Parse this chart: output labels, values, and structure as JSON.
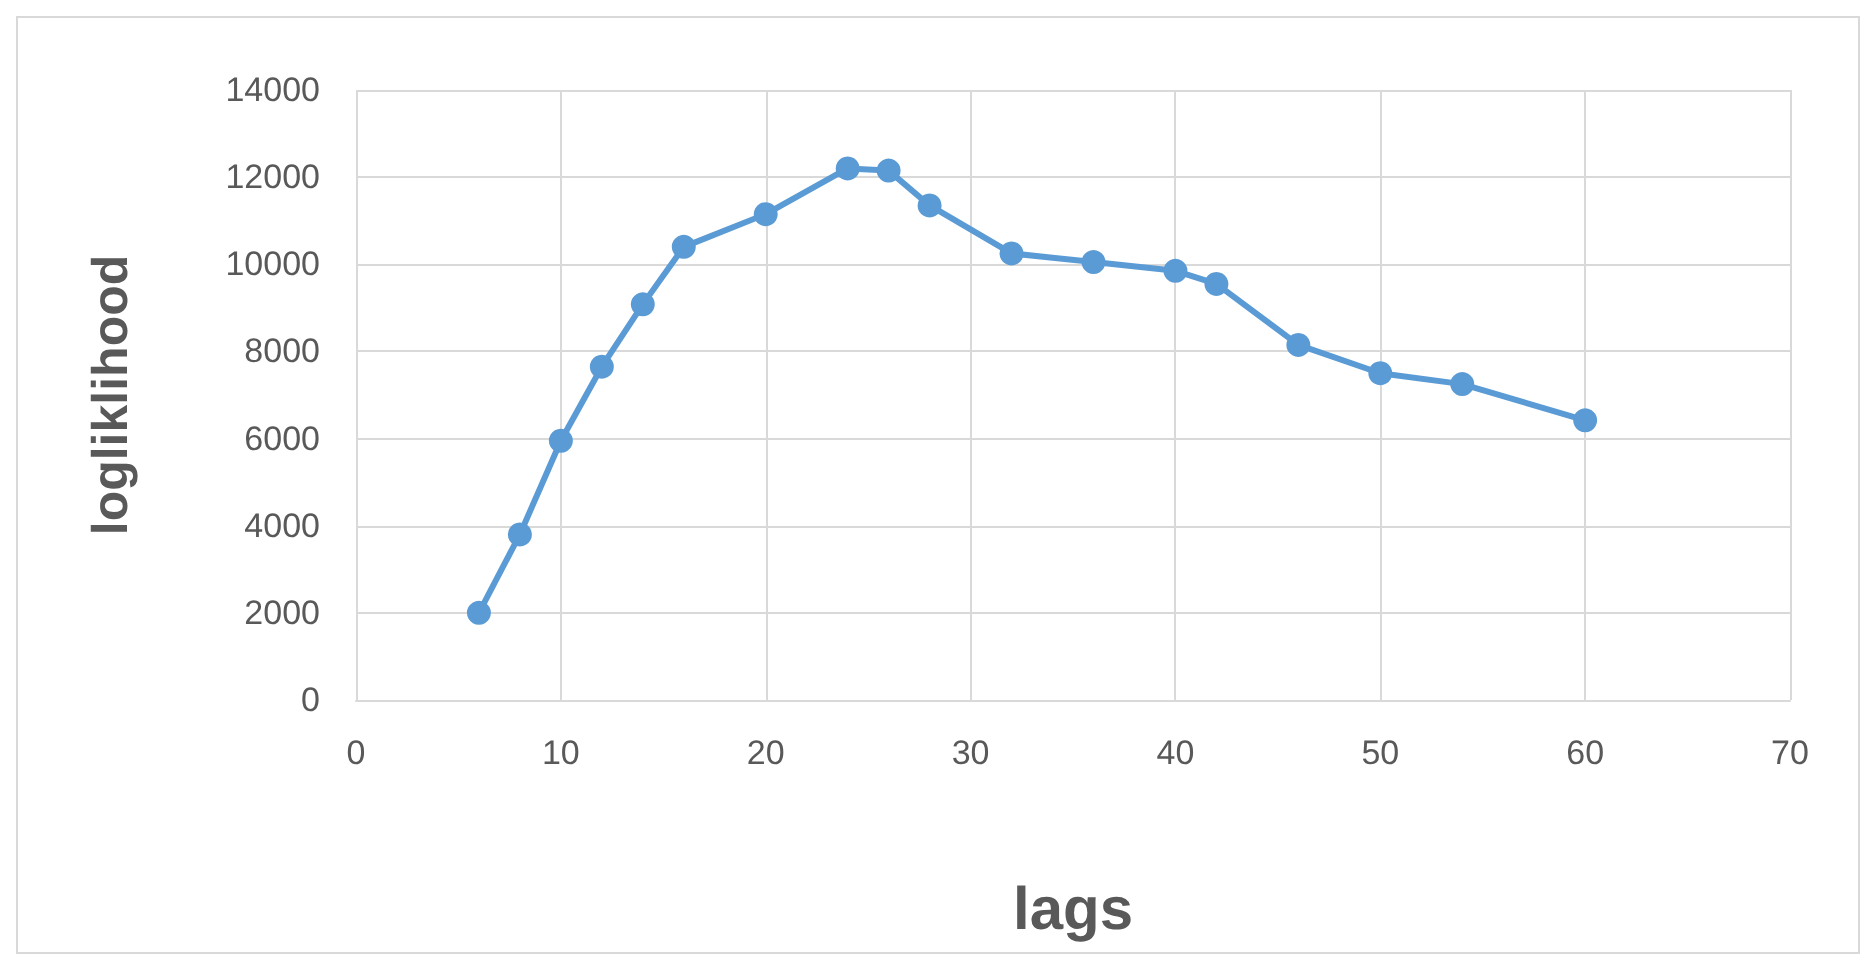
{
  "chart_data": {
    "type": "line",
    "xlabel": "lags",
    "ylabel": "logliklihood",
    "x": [
      6,
      8,
      10,
      12,
      14,
      16,
      20,
      24,
      26,
      28,
      32,
      36,
      40,
      42,
      46,
      50,
      54,
      60
    ],
    "series": [
      {
        "color": "#5b9bd5",
        "values": [
          2000,
          3800,
          5950,
          7650,
          9080,
          10400,
          11150,
          12200,
          12150,
          11350,
          10250,
          10050,
          9850,
          9550,
          8150,
          7500,
          7250,
          6420
        ]
      }
    ],
    "xlim": [
      0,
      70
    ],
    "xticks": [
      0,
      10,
      20,
      30,
      40,
      50,
      60,
      70
    ],
    "ylim": [
      0,
      14000
    ],
    "yticks": [
      0,
      2000,
      4000,
      6000,
      8000,
      10000,
      12000,
      14000
    ],
    "grid": true,
    "marker": "circle",
    "line_style": "solid"
  }
}
